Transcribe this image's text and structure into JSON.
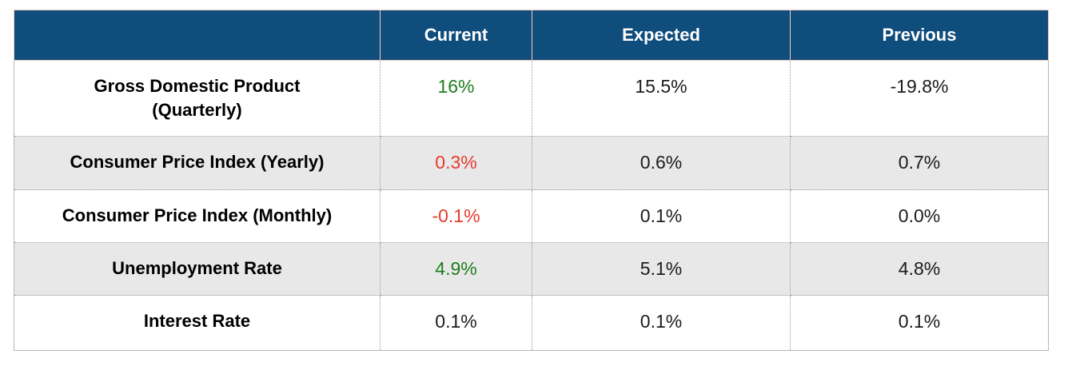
{
  "chart_data": {
    "type": "table",
    "columns": [
      "",
      "Current",
      "Expected",
      "Previous"
    ],
    "categories": [
      "Gross Domestic Product (Quarterly)",
      "Consumer Price Index (Yearly)",
      "Consumer Price Index (Monthly)",
      "Unemployment Rate",
      "Interest Rate"
    ],
    "series": [
      {
        "name": "Current",
        "values": [
          16,
          0.3,
          -0.1,
          4.9,
          0.1
        ]
      },
      {
        "name": "Expected",
        "values": [
          15.5,
          0.6,
          0.1,
          5.1,
          0.1
        ]
      },
      {
        "name": "Previous",
        "values": [
          -19.8,
          0.7,
          0.0,
          4.8,
          0.1
        ]
      }
    ],
    "rows": [
      {
        "indicator": "Gross Domestic Product (Quarterly)",
        "label_lines": [
          "Gross Domestic Product",
          "(Quarterly)"
        ],
        "current": "16%",
        "current_color": "green",
        "expected": "15.5%",
        "previous": "-19.8%"
      },
      {
        "indicator": "Consumer Price Index (Yearly)",
        "label_lines": [
          "Consumer Price Index (Yearly)"
        ],
        "current": "0.3%",
        "current_color": "red",
        "expected": "0.6%",
        "previous": "0.7%"
      },
      {
        "indicator": "Consumer Price Index (Monthly)",
        "label_lines": [
          "Consumer Price Index (Monthly)"
        ],
        "current": "-0.1%",
        "current_color": "red",
        "expected": "0.1%",
        "previous": "0.0%"
      },
      {
        "indicator": "Unemployment Rate",
        "label_lines": [
          "Unemployment Rate"
        ],
        "current": "4.9%",
        "current_color": "green",
        "expected": "5.1%",
        "previous": "4.8%"
      },
      {
        "indicator": "Interest Rate",
        "label_lines": [
          "Interest Rate"
        ],
        "current": "0.1%",
        "current_color": "neutral",
        "expected": "0.1%",
        "previous": "0.1%"
      }
    ],
    "colors": {
      "header_bg": "#0f4d7c",
      "header_text": "#ffffff",
      "row_alt_bg": "#e8e8e8",
      "positive": "#1e7d1e",
      "negative": "#e8392c",
      "neutral": "#1c1c1c"
    },
    "layout": {
      "legend": "none",
      "grid": "dotted"
    }
  }
}
